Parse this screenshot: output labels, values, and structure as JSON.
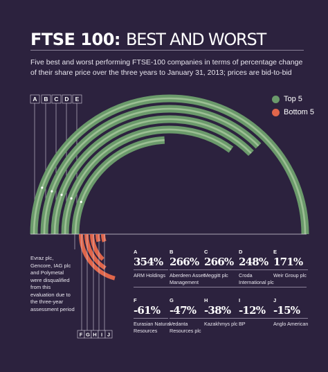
{
  "title": {
    "bold": "FTSE 100:",
    "light": "BEST AND WORST"
  },
  "subtitle": "Five best and worst performing FTSE-100 companies in terms of percentage change of their share price over the three years to January 31, 2013; prices are bid-to-bid",
  "note": "Evraz plc, Gencore, IAG plc and Polymetal were disqualified from this evaluation due to the three-year assessment period",
  "colors": {
    "background": "#2c223e",
    "top": "#6b9a6b",
    "top_light": "#9cbf94",
    "bottom": "#e0664b"
  },
  "legend": [
    {
      "label": "Top 5",
      "color": "#6b9a6b"
    },
    {
      "label": "Bottom 5",
      "color": "#e0664b"
    }
  ],
  "chart_data": {
    "type": "radial-bar",
    "series": [
      {
        "name": "Top 5",
        "items": [
          {
            "letter": "A",
            "value": 354,
            "label": "354%",
            "company": "ARM Holdings"
          },
          {
            "letter": "B",
            "value": 266,
            "label": "266%",
            "company": "Aberdeen Asset Management"
          },
          {
            "letter": "C",
            "value": 266,
            "label": "266%",
            "company": "Meggitt plc"
          },
          {
            "letter": "D",
            "value": 248,
            "label": "248%",
            "company": "Croda International plc"
          },
          {
            "letter": "E",
            "value": 171,
            "label": "171%",
            "company": "Weir Group plc"
          }
        ]
      },
      {
        "name": "Bottom 5",
        "items": [
          {
            "letter": "F",
            "value": -61,
            "label": "-61%",
            "company": "Eurasian Natural Resources"
          },
          {
            "letter": "G",
            "value": -47,
            "label": "-47%",
            "company": "Vedanta Resources plc"
          },
          {
            "letter": "H",
            "value": -38,
            "label": "-38%",
            "company": "Kazakhmys plc"
          },
          {
            "letter": "I",
            "value": -12,
            "label": "-12%",
            "company": "BP"
          },
          {
            "letter": "J",
            "value": -15,
            "label": "-15%",
            "company": "Anglo American"
          }
        ]
      }
    ]
  }
}
